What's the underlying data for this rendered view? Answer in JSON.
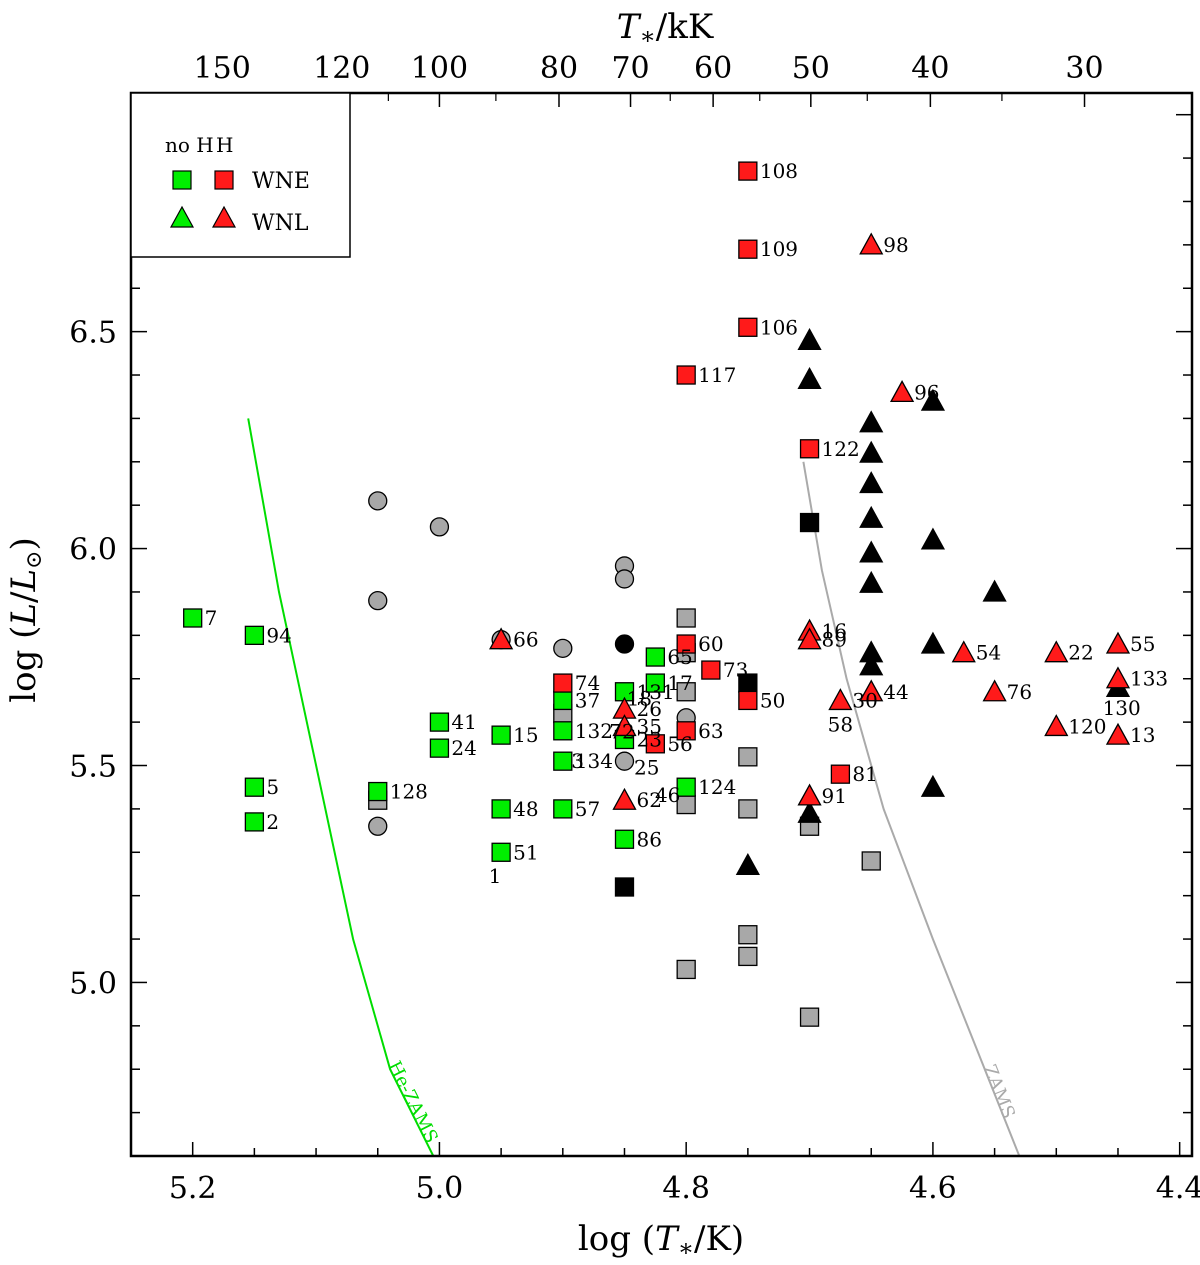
{
  "chart_data": {
    "type": "scatter",
    "title": "",
    "xlabel": "log (T*/K)",
    "ylabel": "log (L/L⊙)",
    "x2label": "T*/kK",
    "xlim": [
      5.25,
      4.39
    ],
    "ylim": [
      4.6,
      7.05
    ],
    "x_ticks": [
      5.2,
      5.0,
      4.8,
      4.6,
      4.4
    ],
    "x_tick_labels": [
      "5.2",
      "5.0",
      "4.8",
      "4.6",
      "4.4"
    ],
    "y_ticks": [
      5.0,
      5.5,
      6.0,
      6.5
    ],
    "y_tick_labels": [
      "5.0",
      "5.5",
      "6.0",
      "6.5"
    ],
    "top_ticks_kK": [
      150,
      120,
      100,
      80,
      70,
      60,
      50,
      40,
      30
    ],
    "top_tick_labels": [
      "150",
      "120",
      "100",
      "80",
      "70",
      "60",
      "50",
      "40",
      "30"
    ],
    "legend": {
      "header_noH": "no H",
      "header_H": "H",
      "entries": [
        {
          "label": "WNE",
          "marker": "square"
        },
        {
          "label": "WNL",
          "marker": "triangle"
        }
      ]
    },
    "colors": {
      "noH": "#00ee00",
      "H": "#ff1a1a",
      "gray": "#a8a8a8",
      "black": "#000000",
      "heZams": "#00dd00",
      "zams": "#aaaaaa"
    },
    "curves": [
      {
        "name": "He-ZAMS",
        "label": "He-ZAMS",
        "color": "#00dd00",
        "points": [
          [
            5.155,
            6.3
          ],
          [
            5.13,
            5.9
          ],
          [
            5.1,
            5.5
          ],
          [
            5.07,
            5.1
          ],
          [
            5.04,
            4.8
          ],
          [
            5.005,
            4.6
          ]
        ]
      },
      {
        "name": "ZAMS",
        "label": "ZAMS",
        "color": "#aaaaaa",
        "points": [
          [
            4.705,
            6.2
          ],
          [
            4.69,
            5.95
          ],
          [
            4.67,
            5.7
          ],
          [
            4.64,
            5.4
          ],
          [
            4.6,
            5.1
          ],
          [
            4.565,
            4.85
          ],
          [
            4.53,
            4.6
          ]
        ]
      }
    ],
    "series": [
      {
        "name": "WNE no H",
        "marker": "square",
        "color": "#00ee00",
        "points": [
          {
            "x": 5.2,
            "y": 5.84,
            "label": "7"
          },
          {
            "x": 5.15,
            "y": 5.8,
            "label": "94"
          },
          {
            "x": 5.15,
            "y": 5.45,
            "label": "5"
          },
          {
            "x": 5.15,
            "y": 5.37,
            "label": "2"
          },
          {
            "x": 5.05,
            "y": 5.44,
            "label": "128"
          },
          {
            "x": 5.0,
            "y": 5.6,
            "label": "41"
          },
          {
            "x": 5.0,
            "y": 5.54,
            "label": "24"
          },
          {
            "x": 4.95,
            "y": 5.57,
            "label": "15"
          },
          {
            "x": 4.95,
            "y": 5.4,
            "label": "48"
          },
          {
            "x": 4.95,
            "y": 5.3,
            "label": "51"
          },
          {
            "x": 4.9,
            "y": 5.65,
            "label": "37"
          },
          {
            "x": 4.9,
            "y": 5.58,
            "label": "132"
          },
          {
            "x": 4.9,
            "y": 5.51,
            "label": "134"
          },
          {
            "x": 4.9,
            "y": 5.4,
            "label": "57"
          },
          {
            "x": 4.85,
            "y": 5.67,
            "label": "131"
          },
          {
            "x": 4.85,
            "y": 5.56,
            "label": "23"
          },
          {
            "x": 4.85,
            "y": 5.33,
            "label": "86"
          },
          {
            "x": 4.825,
            "y": 5.75,
            "label": "65"
          },
          {
            "x": 4.825,
            "y": 5.69,
            "label": "17"
          },
          {
            "x": 4.8,
            "y": 5.45,
            "label": "124"
          }
        ]
      },
      {
        "name": "WNE H",
        "marker": "square",
        "color": "#ff1a1a",
        "points": [
          {
            "x": 4.75,
            "y": 6.87,
            "label": "108"
          },
          {
            "x": 4.75,
            "y": 6.69,
            "label": "109"
          },
          {
            "x": 4.75,
            "y": 6.51,
            "label": "106"
          },
          {
            "x": 4.8,
            "y": 6.4,
            "label": "117"
          },
          {
            "x": 4.7,
            "y": 6.23,
            "label": "122"
          },
          {
            "x": 4.8,
            "y": 5.78,
            "label": "60"
          },
          {
            "x": 4.78,
            "y": 5.72,
            "label": "73"
          },
          {
            "x": 4.9,
            "y": 5.69,
            "label": "74"
          },
          {
            "x": 4.75,
            "y": 5.65,
            "label": "50"
          },
          {
            "x": 4.8,
            "y": 5.58,
            "label": "63"
          },
          {
            "x": 4.825,
            "y": 5.55,
            "label": "56"
          },
          {
            "x": 4.675,
            "y": 5.48,
            "label": "81"
          }
        ]
      },
      {
        "name": "WNL H",
        "marker": "triangle",
        "color": "#ff1a1a",
        "points": [
          {
            "x": 4.65,
            "y": 6.7,
            "label": "98"
          },
          {
            "x": 4.625,
            "y": 6.36,
            "label": "96"
          },
          {
            "x": 4.95,
            "y": 5.79,
            "label": "66"
          },
          {
            "x": 4.7,
            "y": 5.81,
            "label": "16"
          },
          {
            "x": 4.7,
            "y": 5.79,
            "label": "89"
          },
          {
            "x": 4.575,
            "y": 5.76,
            "label": "54"
          },
          {
            "x": 4.5,
            "y": 5.76,
            "label": "22"
          },
          {
            "x": 4.45,
            "y": 5.78,
            "label": "55"
          },
          {
            "x": 4.45,
            "y": 5.7,
            "label": "133"
          },
          {
            "x": 4.55,
            "y": 5.67,
            "label": "76"
          },
          {
            "x": 4.65,
            "y": 5.67,
            "label": "44"
          },
          {
            "x": 4.675,
            "y": 5.65,
            "label": "30"
          },
          {
            "x": 4.85,
            "y": 5.63,
            "label": "26"
          },
          {
            "x": 4.85,
            "y": 5.59,
            "label": "35"
          },
          {
            "x": 4.5,
            "y": 5.59,
            "label": "120"
          },
          {
            "x": 4.45,
            "y": 5.57,
            "label": "13"
          },
          {
            "x": 4.85,
            "y": 5.42,
            "label": "62"
          },
          {
            "x": 4.7,
            "y": 5.43,
            "label": "91"
          }
        ]
      },
      {
        "name": "Black triangles",
        "marker": "triangle",
        "color": "#000000",
        "points": [
          {
            "x": 4.7,
            "y": 6.48
          },
          {
            "x": 4.7,
            "y": 6.39
          },
          {
            "x": 4.65,
            "y": 6.29
          },
          {
            "x": 4.6,
            "y": 6.34
          },
          {
            "x": 4.65,
            "y": 6.22
          },
          {
            "x": 4.65,
            "y": 6.15
          },
          {
            "x": 4.65,
            "y": 6.07
          },
          {
            "x": 4.6,
            "y": 6.02
          },
          {
            "x": 4.65,
            "y": 5.99
          },
          {
            "x": 4.65,
            "y": 5.92
          },
          {
            "x": 4.55,
            "y": 5.9
          },
          {
            "x": 4.6,
            "y": 5.78
          },
          {
            "x": 4.65,
            "y": 5.76
          },
          {
            "x": 4.65,
            "y": 5.73
          },
          {
            "x": 4.6,
            "y": 5.45
          },
          {
            "x": 4.7,
            "y": 5.39
          },
          {
            "x": 4.75,
            "y": 5.27
          },
          {
            "x": 4.45,
            "y": 5.68
          }
        ]
      },
      {
        "name": "Black squares",
        "marker": "square",
        "color": "#000000",
        "points": [
          {
            "x": 4.7,
            "y": 6.06
          },
          {
            "x": 4.75,
            "y": 5.69
          },
          {
            "x": 4.85,
            "y": 5.22
          }
        ]
      },
      {
        "name": "Black circles",
        "marker": "circle",
        "color": "#000000",
        "points": [
          {
            "x": 4.85,
            "y": 5.78
          }
        ]
      },
      {
        "name": "Gray circles",
        "marker": "circle",
        "color": "#a8a8a8",
        "points": [
          {
            "x": 5.05,
            "y": 6.11
          },
          {
            "x": 5.0,
            "y": 6.05
          },
          {
            "x": 5.05,
            "y": 5.88
          },
          {
            "x": 4.85,
            "y": 5.96
          },
          {
            "x": 4.85,
            "y": 5.93
          },
          {
            "x": 4.95,
            "y": 5.79
          },
          {
            "x": 4.9,
            "y": 5.77
          },
          {
            "x": 4.8,
            "y": 5.61
          },
          {
            "x": 4.85,
            "y": 5.51
          },
          {
            "x": 5.05,
            "y": 5.36
          }
        ]
      },
      {
        "name": "Gray squares",
        "marker": "square",
        "color": "#a8a8a8",
        "points": [
          {
            "x": 4.8,
            "y": 5.84
          },
          {
            "x": 4.8,
            "y": 5.76
          },
          {
            "x": 4.8,
            "y": 5.67
          },
          {
            "x": 4.9,
            "y": 5.62
          },
          {
            "x": 4.75,
            "y": 5.52
          },
          {
            "x": 4.8,
            "y": 5.41
          },
          {
            "x": 4.75,
            "y": 5.4
          },
          {
            "x": 4.7,
            "y": 5.36
          },
          {
            "x": 4.65,
            "y": 5.28
          },
          {
            "x": 4.75,
            "y": 5.11
          },
          {
            "x": 4.75,
            "y": 5.06
          },
          {
            "x": 4.8,
            "y": 5.03
          },
          {
            "x": 4.7,
            "y": 4.92
          },
          {
            "x": 5.05,
            "y": 5.42
          }
        ]
      }
    ],
    "annotations": [
      {
        "text": "1",
        "x": 4.955,
        "y": 5.245
      },
      {
        "text": "3",
        "x": 4.888,
        "y": 5.51
      },
      {
        "text": "18",
        "x": 4.838,
        "y": 5.655
      },
      {
        "text": "72",
        "x": 4.852,
        "y": 5.578
      },
      {
        "text": "25",
        "x": 4.832,
        "y": 5.495
      },
      {
        "text": "46",
        "x": 4.815,
        "y": 5.432
      },
      {
        "text": "58",
        "x": 4.675,
        "y": 5.595
      },
      {
        "text": "130",
        "x": 4.447,
        "y": 5.632
      }
    ]
  }
}
